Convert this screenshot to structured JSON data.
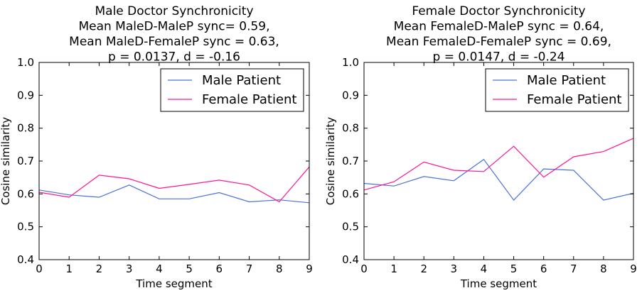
{
  "chart_data": [
    {
      "type": "line",
      "title_lines": [
        "Male Doctor Synchronicity",
        "Mean MaleD-MaleP sync= 0.59,",
        "Mean MaleD-FemaleP sync = 0.63,",
        "p = 0.0137, d = -0.16"
      ],
      "xlabel": "Time segment",
      "ylabel": "Cosine similarity",
      "x": [
        0,
        1,
        2,
        3,
        4,
        5,
        6,
        7,
        8,
        9
      ],
      "xlim": [
        0,
        9
      ],
      "ylim": [
        0.4,
        1.0
      ],
      "xticks": [
        "0",
        "1",
        "2",
        "3",
        "4",
        "5",
        "6",
        "7",
        "8",
        "9"
      ],
      "yticks": [
        "0.4",
        "0.5",
        "0.6",
        "0.7",
        "0.8",
        "0.9",
        "1.0"
      ],
      "grid": false,
      "legend_position": "top-right",
      "series": [
        {
          "name": "Male Patient",
          "color": "#4a72d6",
          "values": [
            0.612,
            0.597,
            0.59,
            0.627,
            0.585,
            0.585,
            0.604,
            0.576,
            0.582,
            0.573
          ]
        },
        {
          "name": "Female Patient",
          "color": "#ff1493",
          "values": [
            0.605,
            0.59,
            0.657,
            0.646,
            0.617,
            0.629,
            0.642,
            0.627,
            0.576,
            0.682
          ]
        }
      ]
    },
    {
      "type": "line",
      "title_lines": [
        "Female Doctor Synchronicity",
        "Mean FemaleD-MaleP sync = 0.64,",
        "Mean FemaleD-FemaleP sync = 0.69,",
        "p = 0.0147, d = -0.24"
      ],
      "xlabel": "Time segment",
      "ylabel": "Cosine similarity",
      "x": [
        0,
        1,
        2,
        3,
        4,
        5,
        6,
        7,
        8,
        9
      ],
      "xlim": [
        0,
        9
      ],
      "ylim": [
        0.4,
        1.0
      ],
      "xticks": [
        "0",
        "1",
        "2",
        "3",
        "4",
        "5",
        "6",
        "7",
        "8",
        "9"
      ],
      "yticks": [
        "0.4",
        "0.5",
        "0.6",
        "0.7",
        "0.8",
        "0.9",
        "1.0"
      ],
      "grid": false,
      "legend_position": "top-right",
      "series": [
        {
          "name": "Male Patient",
          "color": "#4a72d6",
          "values": [
            0.632,
            0.624,
            0.653,
            0.64,
            0.705,
            0.581,
            0.676,
            0.672,
            0.581,
            0.602
          ]
        },
        {
          "name": "Female Patient",
          "color": "#ff1493",
          "values": [
            0.612,
            0.637,
            0.697,
            0.672,
            0.668,
            0.745,
            0.651,
            0.713,
            0.729,
            0.769
          ]
        }
      ]
    }
  ]
}
